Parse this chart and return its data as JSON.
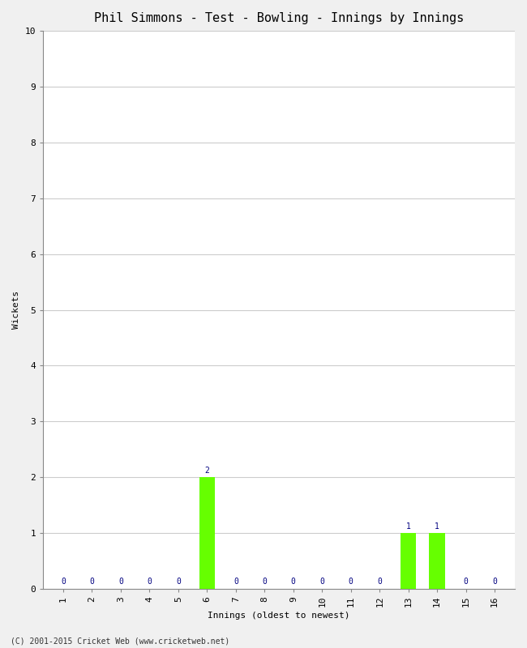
{
  "title": "Phil Simmons - Test - Bowling - Innings by Innings",
  "xlabel": "Innings (oldest to newest)",
  "ylabel": "Wickets",
  "background_color": "#f0f0f0",
  "plot_background_color": "#ffffff",
  "grid_color": "#cccccc",
  "bar_color": "#66ff00",
  "label_color": "#000080",
  "innings": [
    1,
    2,
    3,
    4,
    5,
    6,
    7,
    8,
    9,
    10,
    11,
    12,
    13,
    14,
    15,
    16
  ],
  "wickets": [
    0,
    0,
    0,
    0,
    0,
    2,
    0,
    0,
    0,
    0,
    0,
    0,
    1,
    1,
    0,
    0
  ],
  "ylim": [
    0,
    10
  ],
  "yticks": [
    0,
    1,
    2,
    3,
    4,
    5,
    6,
    7,
    8,
    9,
    10
  ],
  "copyright_text": "(C) 2001-2015 Cricket Web (www.cricketweb.net)",
  "title_fontsize": 11,
  "axis_label_fontsize": 8,
  "tick_label_fontsize": 8,
  "bar_label_fontsize": 7,
  "copyright_fontsize": 7
}
